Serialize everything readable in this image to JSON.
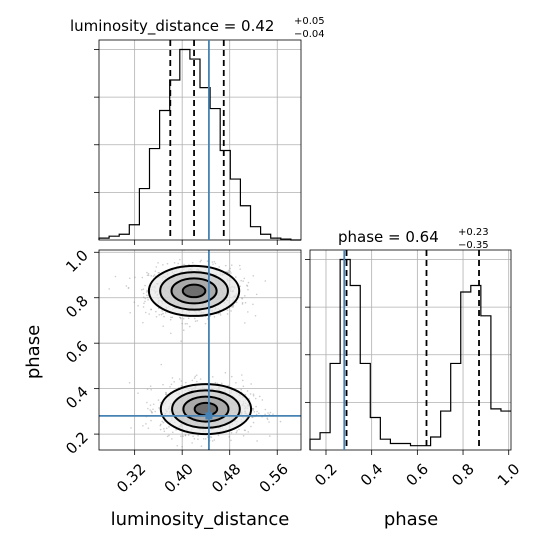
{
  "chart_data": {
    "type": "corner",
    "parameters": [
      "luminosity_distance",
      "phase"
    ],
    "truths": {
      "luminosity_distance": 0.445,
      "phase": 0.28
    },
    "titles": [
      {
        "parameter": "luminosity_distance",
        "text": "luminosity_distance = 0.42",
        "plus": "+0.05",
        "minus": "−0.04"
      },
      {
        "parameter": "phase",
        "text": "phase = 0.64",
        "plus": "+0.23",
        "minus": "−0.35"
      }
    ],
    "axis_labels": {
      "x_bottom_left": "luminosity_distance",
      "x_bottom_right": "phase",
      "y_left": "phase"
    },
    "luminosity_distance_ticks": [
      "0.32",
      "0.40",
      "0.48",
      "0.56"
    ],
    "phase_ticks": [
      "0.2",
      "0.4",
      "0.6",
      "0.8",
      "1.0"
    ],
    "luminosity_distance_range": [
      0.26,
      0.6
    ],
    "phase_range": [
      0.13,
      1.01
    ],
    "luminosity_distance_hist": {
      "edges": [
        0.26,
        0.277,
        0.294,
        0.311,
        0.328,
        0.345,
        0.362,
        0.379,
        0.396,
        0.413,
        0.43,
        0.447,
        0.464,
        0.481,
        0.498,
        0.515,
        0.532,
        0.549,
        0.566,
        0.583,
        0.6
      ],
      "counts": [
        1,
        2,
        3,
        8,
        27,
        48,
        68,
        84,
        100,
        95,
        80,
        69,
        47,
        32,
        18,
        7,
        3,
        1,
        0.5,
        0
      ]
    },
    "luminosity_distance_quantiles": [
      0.38,
      0.42,
      0.47
    ],
    "phase_hist": {
      "edges": [
        0.13,
        0.174,
        0.218,
        0.262,
        0.306,
        0.35,
        0.394,
        0.438,
        0.482,
        0.526,
        0.57,
        0.614,
        0.658,
        0.702,
        0.746,
        0.79,
        0.834,
        0.878,
        0.922,
        0.966,
        1.01
      ],
      "counts": [
        5,
        8,
        40,
        88,
        76,
        40,
        15,
        5,
        3,
        3,
        2,
        2,
        6,
        18,
        40,
        73,
        76,
        62,
        19,
        18
      ]
    },
    "phase_quantiles": [
      0.29,
      0.64,
      0.87
    ],
    "contour_2d_modes": [
      {
        "luminosity_distance": 0.42,
        "phase": 0.83
      },
      {
        "luminosity_distance": 0.44,
        "phase": 0.31
      }
    ]
  }
}
